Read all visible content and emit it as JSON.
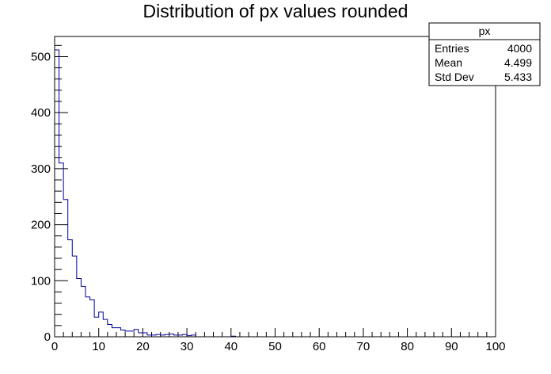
{
  "chart_data": {
    "type": "histogram",
    "title": "Distribution of px values rounded",
    "xlabel": "",
    "ylabel": "",
    "xlim": [
      0,
      100
    ],
    "ylim": [
      0,
      536
    ],
    "bin_width": 1,
    "x_ticks": [
      0,
      10,
      20,
      30,
      40,
      50,
      60,
      70,
      80,
      90,
      100
    ],
    "y_ticks": [
      0,
      100,
      200,
      300,
      400,
      500
    ],
    "series": [
      {
        "color": "#000099",
        "values": [
          512,
          310,
          245,
          173,
          144,
          104,
          90,
          71,
          66,
          35,
          44,
          31,
          22,
          16,
          16,
          12,
          10,
          10,
          13,
          7,
          7,
          3,
          3,
          4,
          3,
          4,
          5,
          3,
          3,
          4,
          2,
          3,
          0,
          0,
          0,
          0,
          0,
          0,
          0,
          0,
          1
        ]
      }
    ],
    "stats_box": {
      "title": "px",
      "rows": [
        {
          "label": "Entries",
          "value": "4000"
        },
        {
          "label": "Mean",
          "value": "4.499"
        },
        {
          "label": "Std Dev",
          "value": "5.433"
        }
      ]
    }
  }
}
